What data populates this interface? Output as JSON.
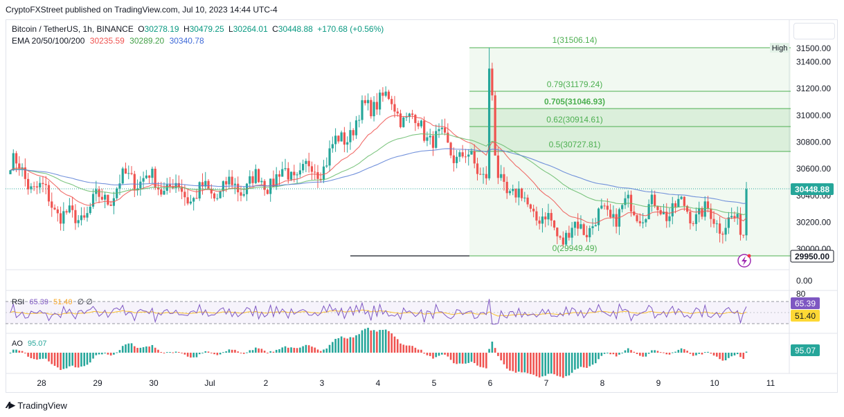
{
  "header": {
    "publisher_line": "CryptoFXStreet published on TradingView.com, Jul 10, 2023 14:44 UTC-4"
  },
  "symbol": {
    "name": "Bitcoin / TetherUS, 1h, BINANCE",
    "open_label": "O",
    "open": "30278.19",
    "high_label": "H",
    "high": "30479.25",
    "low_label": "L",
    "low": "30264.01",
    "close_label": "C",
    "close": "30448.88",
    "change": "+170.68 (+0.56%)"
  },
  "ema": {
    "label": "EMA 20/50/100/200",
    "v20": "30235.59",
    "v50": "30289.20",
    "v100": "30340.78"
  },
  "colors": {
    "up": "#26a69a",
    "down": "#ef5350",
    "ema20": "#ef5350",
    "ema50": "#66bb6a",
    "ema100": "#5b7fd6",
    "fib": "#4caf50",
    "rsi": "#7e57c2",
    "rsi_ma": "#fbc02d"
  },
  "chart_data": [
    {
      "type": "candlestick",
      "symbol": "Bitcoin / TetherUS",
      "interval": "1h",
      "exchange": "BINANCE",
      "x_ticks": [
        "28",
        "29",
        "30",
        "Jul",
        "2",
        "3",
        "4",
        "5",
        "6",
        "7",
        "8",
        "9",
        "10",
        "11"
      ],
      "y_ticks": [
        30000,
        30200,
        30400,
        30600,
        30800,
        31000,
        31200,
        31400,
        31500
      ],
      "ylim": [
        29800,
        31600
      ],
      "approx_close_series": {
        "x": [
          "28",
          "29",
          "30",
          "Jul",
          "2",
          "3",
          "4",
          "5",
          "6",
          "7",
          "8",
          "9",
          "10"
        ],
        "close": [
          30650,
          30200,
          30550,
          30400,
          30500,
          30600,
          31150,
          30800,
          30500,
          30100,
          30300,
          30300,
          30150
        ]
      },
      "last_price": 30448.88,
      "last_price_label": "30448.88",
      "support_label": "29950.00",
      "high_tag": "High",
      "fibonacci": {
        "levels": [
          {
            "ratio_label": "1(31506.14)",
            "price": 31506.14
          },
          {
            "ratio_label": "0.79(31179.24)",
            "price": 31179.24
          },
          {
            "ratio_label": "0.705(31046.93)",
            "price": 31046.93
          },
          {
            "ratio_label": "0.62(30914.61)",
            "price": 30914.61
          },
          {
            "ratio_label": "0.5(30727.81)",
            "price": 30727.81
          },
          {
            "ratio_label": "0(29949.49)",
            "price": 29949.49
          }
        ]
      },
      "ema_series": [
        {
          "name": "EMA 20",
          "last": 30235.59
        },
        {
          "name": "EMA 50",
          "last": 30289.2
        },
        {
          "name": "EMA 100",
          "last": 30340.78
        }
      ],
      "volume_scale_label": "0.00"
    },
    {
      "type": "line",
      "name": "RSI",
      "values_label": "65.39",
      "ma_label": "51.40",
      "extra": "∅ ∅",
      "y_ticks": [
        80
      ],
      "bands": [
        70,
        30
      ],
      "last": 65.39,
      "ma_last": 51.4
    },
    {
      "type": "bar",
      "name": "AO",
      "last": 95.07,
      "last_label": "95.07"
    }
  ],
  "footer": {
    "brand": "TradingView"
  }
}
